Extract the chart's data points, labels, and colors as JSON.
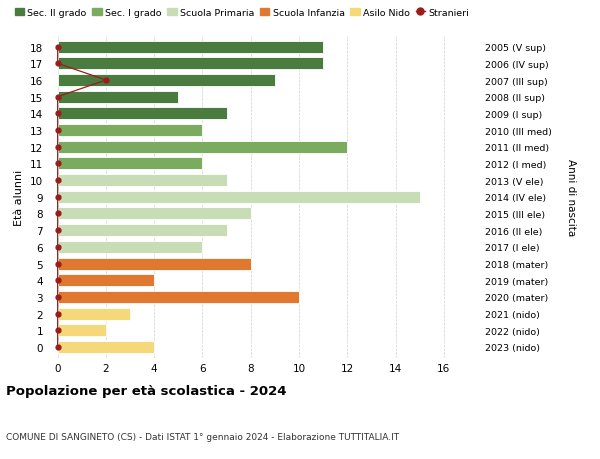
{
  "ages": [
    18,
    17,
    16,
    15,
    14,
    13,
    12,
    11,
    10,
    9,
    8,
    7,
    6,
    5,
    4,
    3,
    2,
    1,
    0
  ],
  "years": [
    "2005 (V sup)",
    "2006 (IV sup)",
    "2007 (III sup)",
    "2008 (II sup)",
    "2009 (I sup)",
    "2010 (III med)",
    "2011 (II med)",
    "2012 (I med)",
    "2013 (V ele)",
    "2014 (IV ele)",
    "2015 (III ele)",
    "2016 (II ele)",
    "2017 (I ele)",
    "2018 (mater)",
    "2019 (mater)",
    "2020 (mater)",
    "2021 (nido)",
    "2022 (nido)",
    "2023 (nido)"
  ],
  "values": [
    11,
    11,
    9,
    5,
    7,
    6,
    12,
    6,
    7,
    15,
    8,
    7,
    6,
    8,
    4,
    10,
    3,
    2,
    4
  ],
  "stranieri_vals": [
    0,
    0,
    2,
    0,
    0,
    0,
    0,
    0,
    0,
    0,
    0,
    0,
    0,
    0,
    0,
    0,
    0,
    0,
    0
  ],
  "bar_colors": [
    "#4a7c3f",
    "#4a7c3f",
    "#4a7c3f",
    "#4a7c3f",
    "#4a7c3f",
    "#7aab5e",
    "#7aab5e",
    "#7aab5e",
    "#c8ddb5",
    "#c8ddb5",
    "#c8ddb5",
    "#c8ddb5",
    "#c8ddb5",
    "#e07830",
    "#e07830",
    "#e07830",
    "#f5d87a",
    "#f5d87a",
    "#f5d87a"
  ],
  "colors": {
    "sec2": "#4a7c3f",
    "sec1": "#7aab5e",
    "primaria": "#c8ddb5",
    "infanzia": "#e07830",
    "nido": "#f5d87a",
    "stranieri": "#9b1c1c"
  },
  "legend_labels": [
    "Sec. II grado",
    "Sec. I grado",
    "Scuola Primaria",
    "Scuola Infanzia",
    "Asilo Nido",
    "Stranieri"
  ],
  "title": "Popolazione per età scolastica - 2024",
  "subtitle": "COMUNE DI SANGINETO (CS) - Dati ISTAT 1° gennaio 2024 - Elaborazione TUTTITALIA.IT",
  "ylabel_left": "Età alunni",
  "ylabel_right": "Anni di nascita",
  "xticks": [
    0,
    2,
    4,
    6,
    8,
    10,
    12,
    14,
    16
  ],
  "xlim": [
    -0.4,
    17.5
  ],
  "ylim": [
    -0.65,
    18.65
  ],
  "background_color": "#ffffff",
  "grid_color": "#d0d0d0",
  "bar_height": 0.72
}
